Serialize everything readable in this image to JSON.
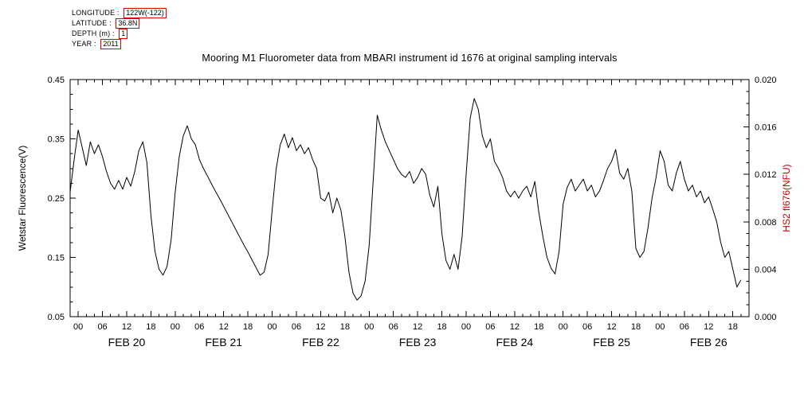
{
  "header": {
    "lines": [
      {
        "label": "LONGITUDE :",
        "value": "122W(-122)"
      },
      {
        "label": "LATITUDE :",
        "value": "36.8N"
      },
      {
        "label": "DEPTH (m) :",
        "value": "1"
      },
      {
        "label": "YEAR :",
        "value": "2011"
      }
    ]
  },
  "title": "Mooring M1 Fluorometer data from MBARI instrument id 1676 at original sampling intervals",
  "colors": {
    "line": "#000000",
    "axis": "#000000",
    "tick_text": "#000000",
    "right_axis_label": "#cc0000",
    "header_box": "#e00000",
    "background": "#ffffff"
  },
  "chart_data": {
    "type": "line",
    "title": "Mooring M1 Fluorometer data from MBARI instrument id 1676 at original sampling intervals",
    "x_unit": "hours since FEB 20 00:00 (2011)",
    "xlim": [
      -2,
      166
    ],
    "grid": false,
    "legend": "none",
    "left_axis": {
      "label": "Wetstar Fluorescence(V)",
      "ticks": [
        0.05,
        0.15,
        0.25,
        0.35,
        0.45
      ],
      "ylim": [
        0.05,
        0.45
      ],
      "decimals": 2,
      "minor_step": 0.025
    },
    "right_axis": {
      "label": "HS2 fl676(NFU)",
      "ticks": [
        0.0,
        0.004,
        0.008,
        0.012,
        0.016,
        0.02
      ],
      "ylim": [
        0.0,
        0.02
      ],
      "decimals": 3,
      "minor_step": 0.001
    },
    "x_ticks": {
      "first": 0,
      "last": 162,
      "step_hours": 6,
      "minor_step_hours": 2,
      "labels_cycle": [
        "00",
        "06",
        "12",
        "18"
      ]
    },
    "day_labels": [
      {
        "label": "FEB 20",
        "hour": 12
      },
      {
        "label": "FEB 21",
        "hour": 36
      },
      {
        "label": "FEB 22",
        "hour": 60
      },
      {
        "label": "FEB 23",
        "hour": 84
      },
      {
        "label": "FEB 24",
        "hour": 108
      },
      {
        "label": "FEB 25",
        "hour": 132
      },
      {
        "label": "FEB 26",
        "hour": 156
      }
    ],
    "series": [
      {
        "name": "Wetstar Fluorescence(V)",
        "x_hours_start": -2,
        "x_hours_step": 1,
        "values": [
          0.26,
          0.315,
          0.365,
          0.335,
          0.305,
          0.345,
          0.325,
          0.34,
          0.32,
          0.295,
          0.275,
          0.265,
          0.28,
          0.265,
          0.285,
          0.27,
          0.295,
          0.33,
          0.345,
          0.31,
          0.22,
          0.16,
          0.13,
          0.12,
          0.135,
          0.18,
          0.26,
          0.32,
          0.355,
          0.372,
          0.35,
          0.34,
          0.315,
          0.3,
          0.287,
          0.274,
          0.261,
          0.249,
          0.236,
          0.223,
          0.21,
          0.197,
          0.184,
          0.171,
          0.159,
          0.146,
          0.133,
          0.12,
          0.125,
          0.155,
          0.23,
          0.3,
          0.34,
          0.358,
          0.335,
          0.352,
          0.33,
          0.34,
          0.325,
          0.335,
          0.315,
          0.3,
          0.25,
          0.245,
          0.26,
          0.225,
          0.25,
          0.23,
          0.185,
          0.125,
          0.09,
          0.078,
          0.085,
          0.11,
          0.17,
          0.28,
          0.39,
          0.365,
          0.345,
          0.33,
          0.315,
          0.3,
          0.29,
          0.285,
          0.295,
          0.275,
          0.285,
          0.3,
          0.29,
          0.255,
          0.235,
          0.27,
          0.19,
          0.145,
          0.13,
          0.155,
          0.13,
          0.185,
          0.29,
          0.385,
          0.418,
          0.4,
          0.355,
          0.335,
          0.35,
          0.312,
          0.3,
          0.285,
          0.262,
          0.252,
          0.262,
          0.25,
          0.262,
          0.27,
          0.252,
          0.278,
          0.225,
          0.185,
          0.15,
          0.132,
          0.122,
          0.16,
          0.24,
          0.268,
          0.282,
          0.262,
          0.272,
          0.282,
          0.262,
          0.272,
          0.252,
          0.262,
          0.28,
          0.3,
          0.312,
          0.332,
          0.292,
          0.282,
          0.3,
          0.262,
          0.165,
          0.15,
          0.16,
          0.2,
          0.25,
          0.285,
          0.33,
          0.312,
          0.272,
          0.262,
          0.292,
          0.312,
          0.282,
          0.262,
          0.272,
          0.252,
          0.262,
          0.242,
          0.252,
          0.232,
          0.21,
          0.175,
          0.15,
          0.16,
          0.13,
          0.1,
          0.112
        ]
      }
    ]
  }
}
